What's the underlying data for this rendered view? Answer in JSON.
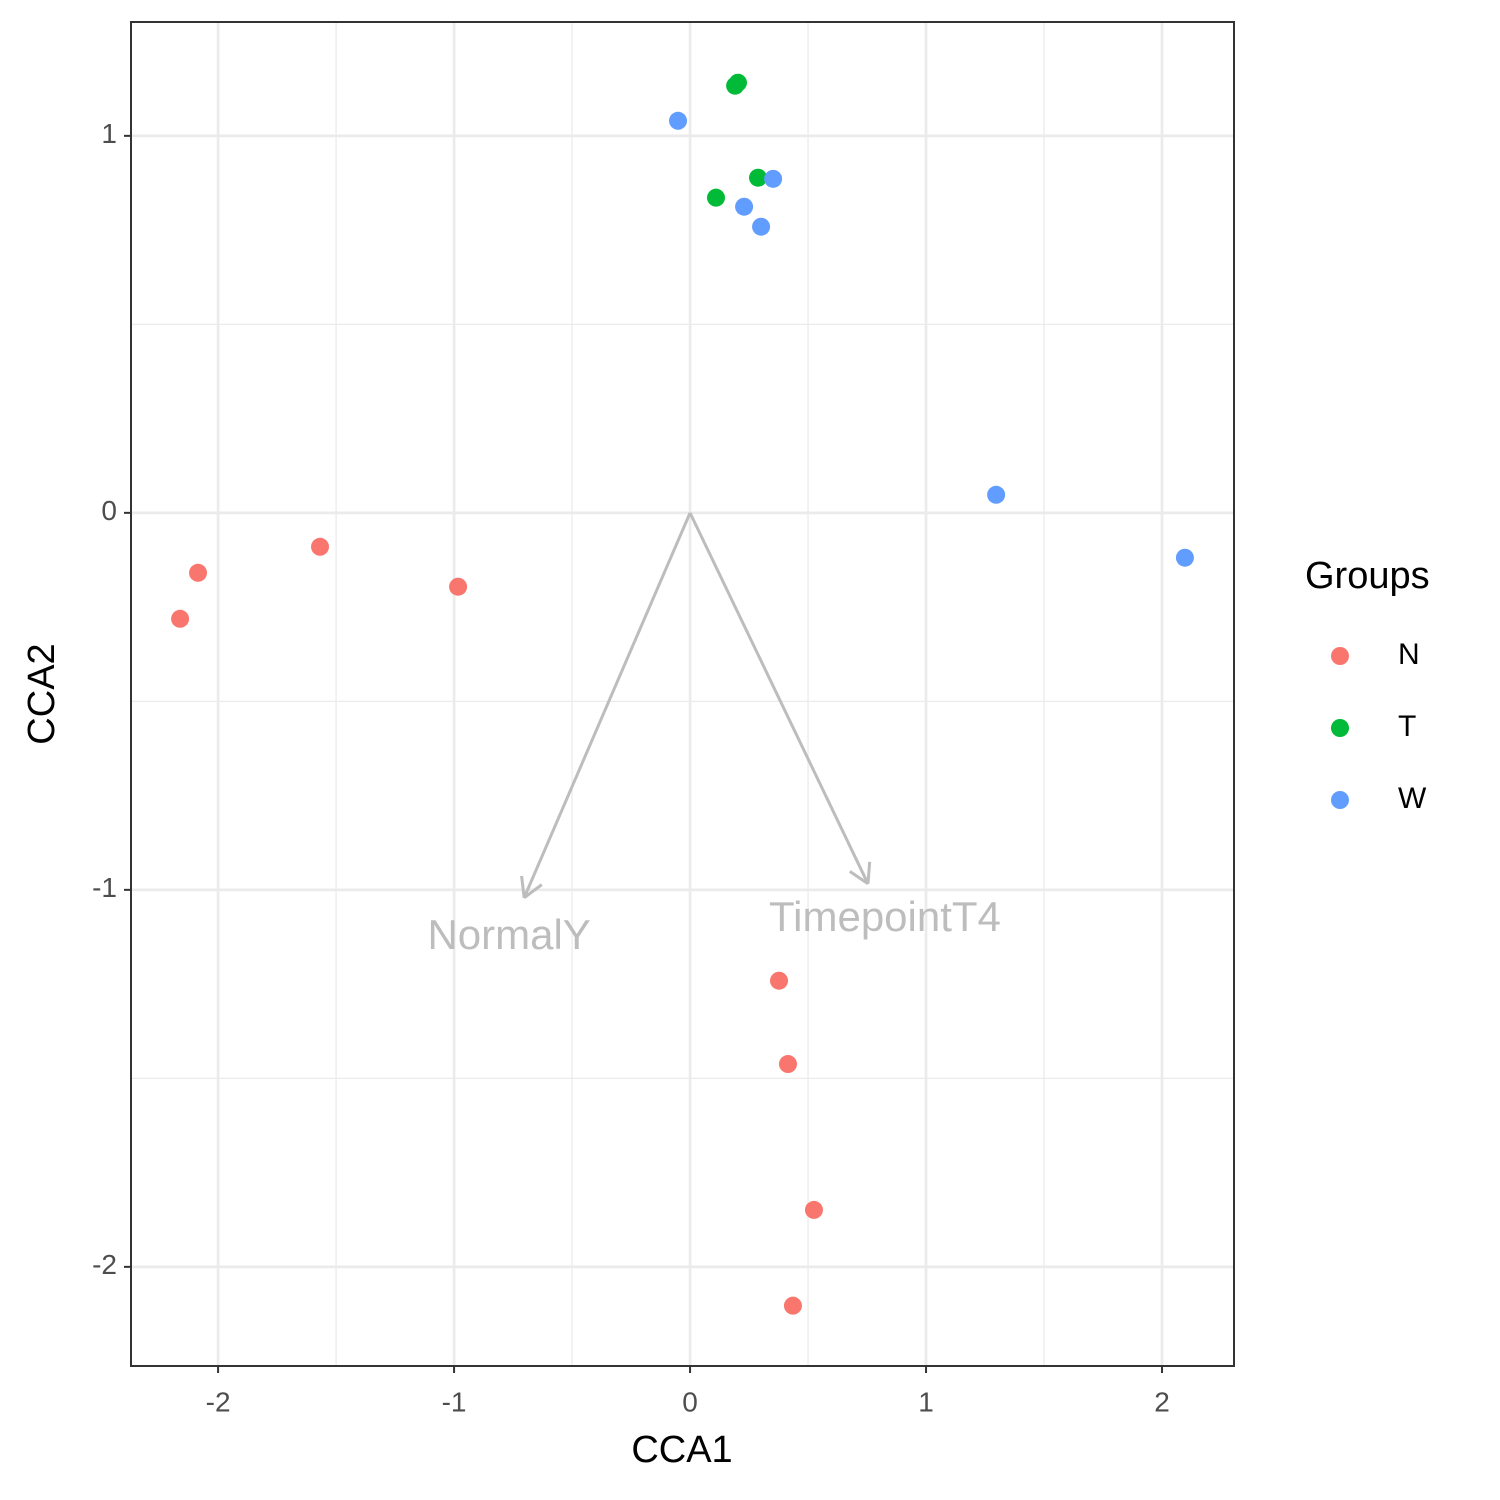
{
  "chart_data": {
    "type": "scatter",
    "xlabel": "CCA1",
    "ylabel": "CCA2",
    "xlim": [
      -2.369,
      2.305
    ],
    "ylim": [
      -2.263,
      1.302
    ],
    "xticks": [
      -2,
      -1,
      0,
      1,
      2
    ],
    "yticks": [
      -2,
      -1,
      0,
      1
    ],
    "grid": true,
    "legend": {
      "title": "Groups",
      "position": "right"
    },
    "series": [
      {
        "name": "N",
        "color": "#f8766d",
        "x": [
          -2.085,
          -2.161,
          -1.568,
          -0.983,
          0.377,
          0.415,
          0.525,
          0.436
        ],
        "y": [
          -0.159,
          -0.281,
          -0.09,
          -0.196,
          -1.241,
          -1.462,
          -1.849,
          -2.103
        ]
      },
      {
        "name": "T",
        "color": "#00ba38",
        "x": [
          0.203,
          0.191,
          0.288,
          0.11
        ],
        "y": [
          1.141,
          1.133,
          0.889,
          0.836
        ]
      },
      {
        "name": "W",
        "color": "#619cff",
        "x": [
          -0.051,
          0.352,
          0.229,
          0.301,
          1.297,
          2.097
        ],
        "y": [
          1.04,
          0.886,
          0.812,
          0.759,
          0.048,
          -0.119
        ]
      }
    ],
    "arrows": [
      {
        "label": "NormalY",
        "x": -0.703,
        "y": -1.021
      },
      {
        "label": "TimepointT4",
        "x": 0.754,
        "y": -0.984
      }
    ],
    "arrow_color": "#bdbdbd"
  }
}
